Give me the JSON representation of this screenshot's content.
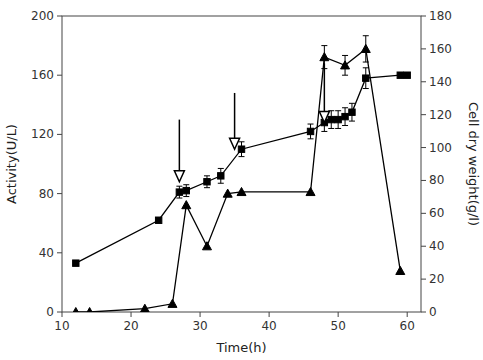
{
  "chart_data": {
    "type": "line",
    "xlabel": "Time(h)",
    "ylabel": "Activity(U/L)",
    "y2label": "Cell dry weight(g/l)",
    "xlim": [
      10,
      62
    ],
    "xticks": [
      10,
      20,
      30,
      40,
      50,
      60
    ],
    "ylim": [
      0,
      200
    ],
    "yticks": [
      0,
      40,
      80,
      120,
      160,
      200
    ],
    "y2lim": [
      0,
      180
    ],
    "y2ticks": [
      0,
      20,
      40,
      60,
      80,
      100,
      120,
      140,
      160,
      180
    ],
    "grid": false,
    "series": [
      {
        "axis": "y",
        "marker": "square",
        "line_style": "solid",
        "color": "#000000",
        "x": [
          12,
          24,
          27,
          28,
          31,
          33,
          36,
          46,
          48,
          49,
          50,
          51,
          52,
          54,
          59,
          60
        ],
        "values": [
          33,
          62,
          81,
          82,
          88,
          92,
          110,
          122,
          128,
          130,
          130,
          132,
          135,
          158,
          160,
          160
        ],
        "errors": [
          0,
          0,
          4,
          4,
          4,
          5,
          5,
          5,
          6,
          6,
          6,
          6,
          6,
          7,
          0,
          0
        ]
      },
      {
        "axis": "y2",
        "marker": "triangle",
        "line_style": "solid",
        "color": "#000000",
        "x": [
          12,
          14,
          22,
          26,
          28,
          31,
          34,
          36,
          46,
          48,
          51,
          54,
          59
        ],
        "values": [
          0,
          0,
          2,
          5,
          65,
          40,
          72,
          73,
          73,
          155,
          150,
          160,
          25
        ],
        "errors": [
          0,
          0,
          0,
          0,
          0,
          0,
          0,
          0,
          0,
          7,
          6,
          8,
          0
        ]
      }
    ],
    "arrows": [
      {
        "from": [
          27,
          130
        ],
        "to": [
          27,
          88
        ]
      },
      {
        "from": [
          35,
          148
        ],
        "to": [
          35,
          110
        ]
      },
      {
        "from": [
          48,
          168
        ],
        "to": [
          48,
          128
        ]
      }
    ]
  }
}
